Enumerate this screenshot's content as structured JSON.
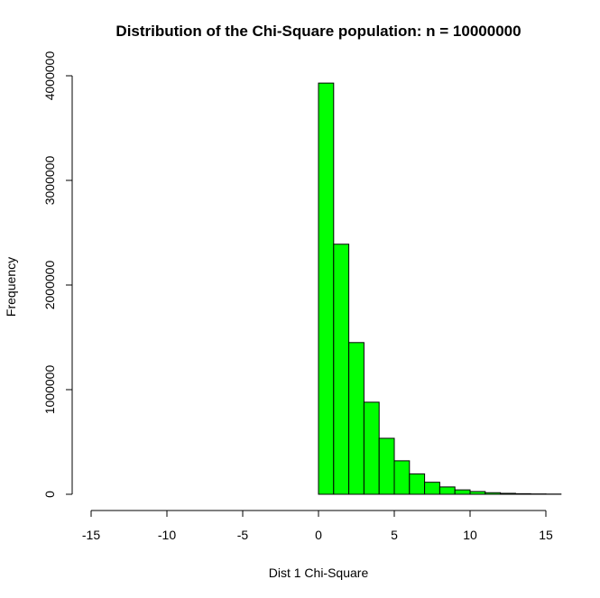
{
  "chart_data": {
    "type": "bar",
    "title": "Distribution of the Chi-Square population: n =  10000000",
    "xlabel": "Dist 1 Chi-Square",
    "ylabel": "Frequency",
    "xlim": [
      -15,
      16
    ],
    "ylim": [
      0,
      4000000
    ],
    "x_ticks": [
      -15,
      -10,
      -5,
      0,
      5,
      10,
      15
    ],
    "y_ticks": [
      0,
      1000000,
      2000000,
      3000000,
      4000000
    ],
    "bin_width": 1,
    "bins": [
      {
        "start": 0,
        "end": 1,
        "value": 3930000
      },
      {
        "start": 1,
        "end": 2,
        "value": 2390000
      },
      {
        "start": 2,
        "end": 3,
        "value": 1450000
      },
      {
        "start": 3,
        "end": 4,
        "value": 880000
      },
      {
        "start": 4,
        "end": 5,
        "value": 535000
      },
      {
        "start": 5,
        "end": 6,
        "value": 320000
      },
      {
        "start": 6,
        "end": 7,
        "value": 195000
      },
      {
        "start": 7,
        "end": 8,
        "value": 115000
      },
      {
        "start": 8,
        "end": 9,
        "value": 70000
      },
      {
        "start": 9,
        "end": 10,
        "value": 42000
      },
      {
        "start": 10,
        "end": 11,
        "value": 26000
      },
      {
        "start": 11,
        "end": 12,
        "value": 15000
      },
      {
        "start": 12,
        "end": 13,
        "value": 9000
      },
      {
        "start": 13,
        "end": 14,
        "value": 5500
      },
      {
        "start": 14,
        "end": 15,
        "value": 3300
      },
      {
        "start": 15,
        "end": 16,
        "value": 2000
      }
    ],
    "bar_color": "#00ff00",
    "bar_border_color": "#000000",
    "grid": false,
    "legend": "none"
  }
}
